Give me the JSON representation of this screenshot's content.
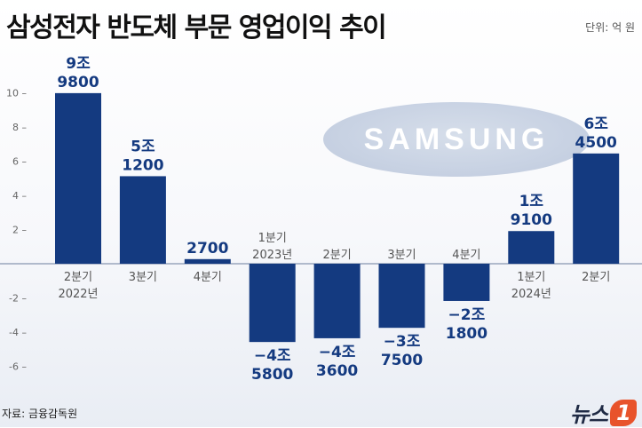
{
  "header": {
    "title": "삼성전자 반도체 부문 영업이익 추이",
    "unit": "단위: 억 원"
  },
  "footer": {
    "source": "자료: 금융감독원",
    "logo_text": "뉴스",
    "logo_mark": "1"
  },
  "brand_watermark": "SAMSUNG",
  "chart_data": {
    "type": "bar",
    "categories": [
      "2분기\n2022년",
      "3분기",
      "4분기",
      "1분기\n2023년",
      "2분기",
      "3분기",
      "4분기",
      "1분기\n2024년",
      "2분기"
    ],
    "values": [
      9.98,
      5.12,
      0.27,
      -4.58,
      -4.36,
      -3.75,
      -2.18,
      1.91,
      6.45
    ],
    "data_labels": [
      "9조\n9800",
      "5조\n1200",
      "2700",
      "−4조\n5800",
      "−4조\n3600",
      "−3조\n7500",
      "−2조\n1800",
      "1조\n9100",
      "6조\n4500"
    ],
    "yticks": [
      10,
      8,
      6,
      4,
      2,
      -2,
      -4,
      -6
    ],
    "ytick_labels": [
      "10 –",
      "8 –",
      "6 –",
      "4 –",
      "2 –",
      "-2 –",
      "-4 –",
      "-6 –"
    ],
    "ylim": [
      -7,
      11
    ],
    "grid": false,
    "colors": {
      "bar": "#143a80",
      "zero_line": "#9aa6bd",
      "label": "#143a80",
      "category": "#555555"
    }
  }
}
